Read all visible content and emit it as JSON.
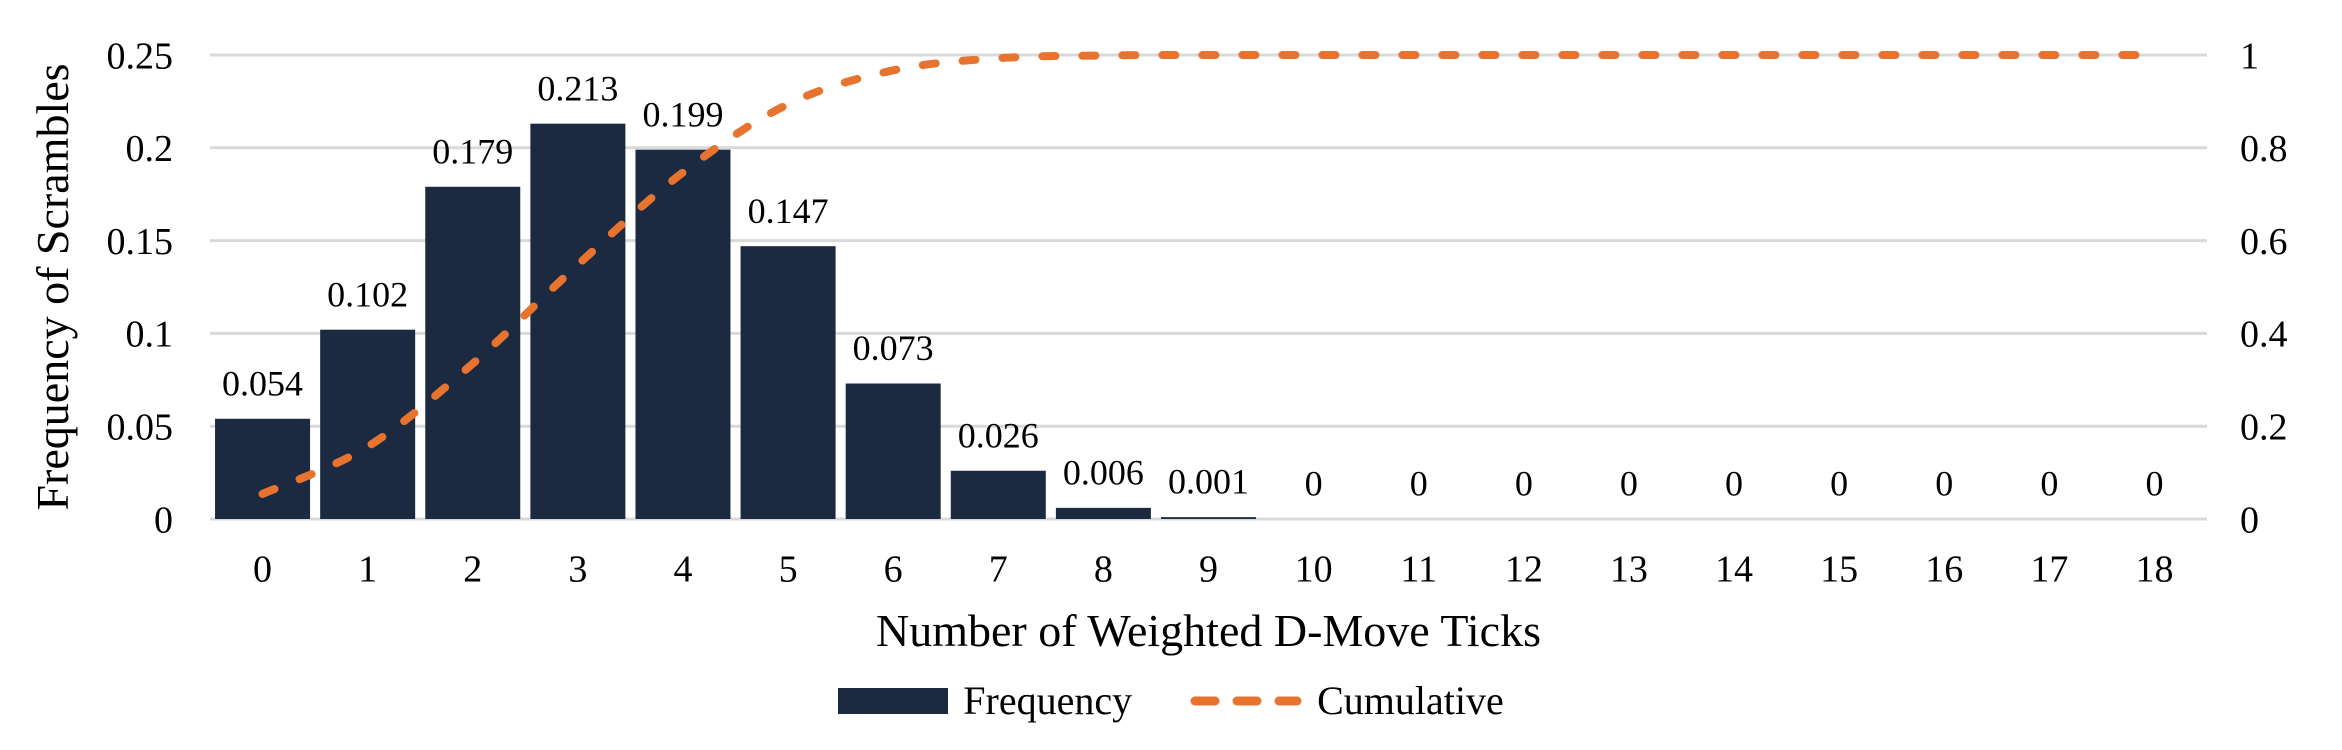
{
  "chart_data": {
    "type": "bar",
    "subtype": "bar-line-combo",
    "categories": [
      "0",
      "1",
      "2",
      "3",
      "4",
      "5",
      "6",
      "7",
      "8",
      "9",
      "10",
      "11",
      "12",
      "13",
      "14",
      "15",
      "16",
      "17",
      "18"
    ],
    "series": [
      {
        "name": "Frequency",
        "type": "bar",
        "axis": "left",
        "values": [
          0.054,
          0.102,
          0.179,
          0.213,
          0.199,
          0.147,
          0.073,
          0.026,
          0.006,
          0.001,
          0,
          0,
          0,
          0,
          0,
          0,
          0,
          0,
          0
        ],
        "value_labels": [
          "0.054",
          "0.102",
          "0.179",
          "0.213",
          "0.199",
          "0.147",
          "0.073",
          "0.026",
          "0.006",
          "0.001",
          "0",
          "0",
          "0",
          "0",
          "0",
          "0",
          "0",
          "0",
          "0"
        ]
      },
      {
        "name": "Cumulative",
        "type": "line",
        "line_style": "dashed",
        "smooth": true,
        "axis": "right",
        "values": [
          0.054,
          0.156,
          0.335,
          0.548,
          0.747,
          0.894,
          0.967,
          0.993,
          0.999,
          1,
          1,
          1,
          1,
          1,
          1,
          1,
          1,
          1,
          1
        ]
      }
    ],
    "title": "",
    "xlabel": "Number of Weighted D-Move Ticks",
    "ylabel": "Frequency of Scrambles",
    "left_axis": {
      "min": 0,
      "max": 0.25,
      "ticks": [
        "0",
        "0.05",
        "0.1",
        "0.15",
        "0.2",
        "0.25"
      ],
      "tick_values": [
        0,
        0.05,
        0.1,
        0.15,
        0.2,
        0.25
      ]
    },
    "right_axis": {
      "min": 0,
      "max": 1,
      "ticks": [
        "0",
        "0.2",
        "0.4",
        "0.6",
        "0.8",
        "1"
      ],
      "tick_values": [
        0,
        0.2,
        0.4,
        0.6,
        0.8,
        1
      ]
    },
    "grid": "horizontal",
    "legend_position": "bottom",
    "colors": {
      "bar": "#1B2A40",
      "line": "#E8732F",
      "gridline": "#D9D9D9",
      "text": "#000000",
      "background": "#FFFFFF"
    }
  },
  "legend": {
    "items": [
      {
        "label": "Frequency",
        "swatch": "bar-swatch"
      },
      {
        "label": "Cumulative",
        "swatch": "dashed-line-swatch"
      }
    ]
  }
}
